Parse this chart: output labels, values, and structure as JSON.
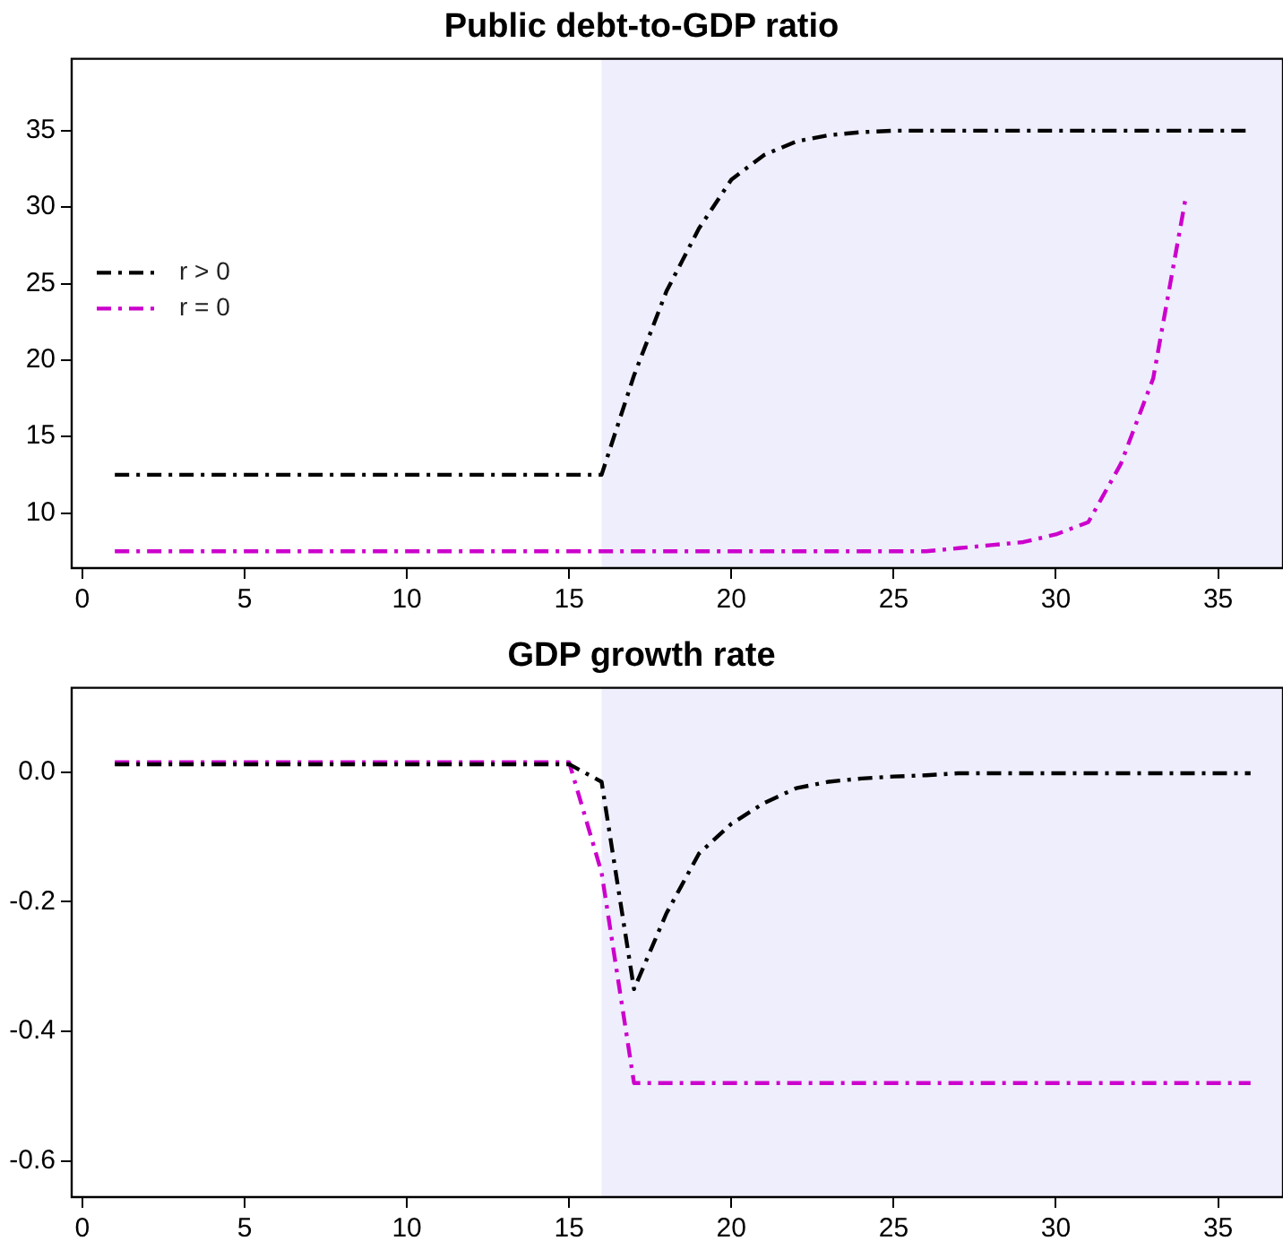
{
  "chart_data": [
    {
      "type": "line",
      "title": "Public debt-to-GDP ratio",
      "x": [
        1,
        2,
        3,
        4,
        5,
        6,
        7,
        8,
        9,
        10,
        11,
        12,
        13,
        14,
        15,
        16,
        17,
        18,
        19,
        20,
        21,
        22,
        23,
        24,
        25,
        26,
        27,
        28,
        29,
        30,
        31,
        32,
        33,
        34,
        35,
        36
      ],
      "series": [
        {
          "name": "r > 0",
          "color": "#000000",
          "values": [
            12.5,
            12.5,
            12.5,
            12.5,
            12.5,
            12.5,
            12.5,
            12.5,
            12.5,
            12.5,
            12.5,
            12.5,
            12.5,
            12.5,
            12.5,
            12.5,
            19,
            24.5,
            28.6,
            31.8,
            33.4,
            34.3,
            34.7,
            34.9,
            35,
            35,
            35,
            35,
            35,
            35,
            35,
            35,
            35,
            35,
            35,
            35
          ]
        },
        {
          "name": "r = 0",
          "color": "#cc00cc",
          "values": [
            7.5,
            7.5,
            7.5,
            7.5,
            7.5,
            7.5,
            7.5,
            7.5,
            7.5,
            7.5,
            7.5,
            7.5,
            7.5,
            7.5,
            7.5,
            7.5,
            7.5,
            7.5,
            7.5,
            7.5,
            7.5,
            7.5,
            7.5,
            7.5,
            7.5,
            7.5,
            7.7,
            7.9,
            8.1,
            8.6,
            9.4,
            13.2,
            18.8,
            30.6,
            null,
            null
          ]
        }
      ],
      "xlim": [
        -0.33,
        37
      ],
      "xticks": [
        0,
        5,
        10,
        15,
        20,
        25,
        30,
        35
      ],
      "ylim": [
        6.4,
        39.7
      ],
      "yticks": [
        10,
        15,
        20,
        25,
        30,
        35
      ],
      "bands": [
        {
          "axis": "x",
          "from": 16,
          "to": 37,
          "color": "#efeefc"
        }
      ],
      "grid": false,
      "legend": "left",
      "marker": "none",
      "line_style": "dashed"
    },
    {
      "type": "line",
      "title": "GDP growth rate",
      "x": [
        1,
        2,
        3,
        4,
        5,
        6,
        7,
        8,
        9,
        10,
        11,
        12,
        13,
        14,
        15,
        16,
        17,
        18,
        19,
        20,
        21,
        22,
        23,
        24,
        25,
        26,
        27,
        28,
        29,
        30,
        31,
        32,
        33,
        34,
        35,
        36
      ],
      "series": [
        {
          "color": "#000000",
          "values": [
            0.012,
            0.012,
            0.012,
            0.012,
            0.012,
            0.012,
            0.012,
            0.012,
            0.012,
            0.012,
            0.012,
            0.012,
            0.012,
            0.012,
            0.012,
            -0.015,
            -0.335,
            -0.218,
            -0.126,
            -0.08,
            -0.048,
            -0.025,
            -0.015,
            -0.01,
            -0.007,
            -0.005,
            -0.002,
            -0.002,
            -0.002,
            -0.002,
            -0.002,
            -0.002,
            -0.002,
            -0.002,
            -0.002,
            -0.002
          ]
        },
        {
          "color": "#cc00cc",
          "values": [
            0.015,
            0.015,
            0.015,
            0.015,
            0.015,
            0.015,
            0.015,
            0.015,
            0.015,
            0.015,
            0.015,
            0.015,
            0.015,
            0.015,
            0.015,
            -0.155,
            -0.48,
            -0.48,
            -0.48,
            -0.48,
            -0.48,
            -0.48,
            -0.48,
            -0.48,
            -0.48,
            -0.48,
            -0.48,
            -0.48,
            -0.48,
            -0.48,
            -0.48,
            -0.48,
            -0.48,
            -0.48,
            -0.48,
            -0.48
          ]
        }
      ],
      "xlim": [
        -0.33,
        37
      ],
      "xticks": [
        0,
        5,
        10,
        15,
        20,
        25,
        30,
        35
      ],
      "ylim": [
        -0.656,
        0.13
      ],
      "yticks": [
        {
          "value": 0,
          "label": "0.0"
        },
        {
          "value": -0.2,
          "label": "-0.2"
        },
        {
          "value": -0.4,
          "label": "-0.4"
        },
        {
          "value": -0.6,
          "label": "-0.6"
        }
      ],
      "bands": [
        {
          "axis": "x",
          "from": 16,
          "to": 37,
          "color": "#efeefc"
        }
      ],
      "grid": false,
      "legend": false,
      "marker": "none",
      "line_style": "dashed"
    }
  ]
}
